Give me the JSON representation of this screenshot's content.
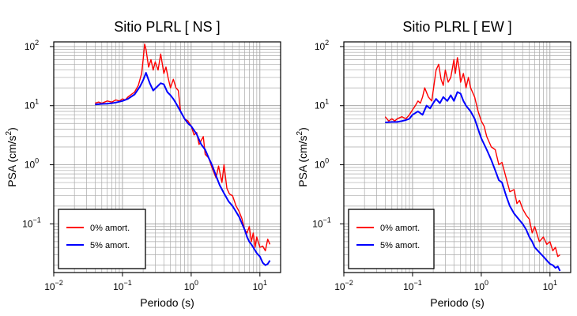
{
  "chart_data": [
    {
      "type": "line",
      "title": "Sitio PLRL [ NS ]",
      "xlabel": "Periodo (s)",
      "ylabel_prefix": "PSA (cm/s",
      "ylabel_sup": "2",
      "ylabel_suffix": ")",
      "x_scale": "log",
      "y_scale": "log",
      "xlim": [
        0.01,
        20
      ],
      "ylim": [
        0.015,
        120
      ],
      "grid": true,
      "legend_position": "bottom-left",
      "x_ticks": [
        {
          "base": "10",
          "exp": "−2",
          "value": 0.01
        },
        {
          "base": "10",
          "exp": "−1",
          "value": 0.1
        },
        {
          "base": "10",
          "exp": "0",
          "value": 1
        },
        {
          "base": "10",
          "exp": "1",
          "value": 10
        }
      ],
      "y_ticks": [
        {
          "base": "10",
          "exp": "−1",
          "value": 0.1
        },
        {
          "base": "10",
          "exp": "0",
          "value": 1
        },
        {
          "base": "10",
          "exp": "1",
          "value": 10
        },
        {
          "base": "10",
          "exp": "2",
          "value": 100
        }
      ],
      "series": [
        {
          "name": "0% amort.",
          "color": "#ff0000",
          "x": [
            0.04,
            0.045,
            0.05,
            0.06,
            0.07,
            0.08,
            0.09,
            0.1,
            0.11,
            0.12,
            0.13,
            0.15,
            0.17,
            0.19,
            0.2,
            0.21,
            0.22,
            0.24,
            0.26,
            0.28,
            0.3,
            0.33,
            0.36,
            0.4,
            0.43,
            0.46,
            0.5,
            0.55,
            0.6,
            0.65,
            0.7,
            0.8,
            0.9,
            1.0,
            1.1,
            1.2,
            1.3,
            1.5,
            1.6,
            1.8,
            2.0,
            2.3,
            2.5,
            2.8,
            3.0,
            3.3,
            3.6,
            4.0,
            4.5,
            5.0,
            5.5,
            6.0,
            6.5,
            7.0,
            7.5,
            8.0,
            8.5,
            9.0,
            10.0,
            11.0,
            12.0,
            13.0,
            14.0
          ],
          "values": [
            11,
            11.5,
            11,
            12,
            11.5,
            12.5,
            12,
            13,
            12.5,
            14,
            15,
            17,
            22,
            35,
            60,
            110,
            90,
            45,
            60,
            40,
            55,
            40,
            75,
            35,
            45,
            30,
            20,
            28,
            20,
            18,
            8,
            6,
            5.5,
            4.5,
            3.2,
            3.5,
            2.2,
            3.0,
            1.5,
            1.3,
            0.9,
            0.6,
            0.95,
            0.5,
            1.0,
            0.4,
            0.32,
            0.3,
            0.2,
            0.16,
            0.12,
            0.08,
            0.07,
            0.09,
            0.05,
            0.07,
            0.04,
            0.06,
            0.04,
            0.042,
            0.035,
            0.055,
            0.045
          ]
        },
        {
          "name": "5% amort.",
          "color": "#0000ff",
          "x": [
            0.04,
            0.05,
            0.06,
            0.07,
            0.08,
            0.1,
            0.12,
            0.15,
            0.18,
            0.2,
            0.22,
            0.25,
            0.28,
            0.32,
            0.36,
            0.4,
            0.45,
            0.5,
            0.55,
            0.6,
            0.7,
            0.8,
            0.9,
            1.0,
            1.2,
            1.4,
            1.6,
            1.8,
            2.0,
            2.3,
            2.6,
            3.0,
            3.5,
            4.0,
            4.5,
            5.0,
            5.5,
            6.0,
            6.5,
            7.0,
            7.5,
            8.0,
            9.0,
            10.0,
            11.0,
            12.0,
            13.0,
            14.0
          ],
          "values": [
            10.5,
            10.7,
            10.8,
            11,
            11.3,
            12,
            13,
            15.5,
            21,
            27,
            36,
            24,
            18,
            21,
            24,
            23,
            17,
            15,
            13,
            11,
            8,
            6,
            5,
            4.5,
            3.3,
            2.2,
            1.8,
            1.3,
            1.0,
            0.65,
            0.45,
            0.33,
            0.24,
            0.2,
            0.16,
            0.13,
            0.1,
            0.08,
            0.06,
            0.05,
            0.045,
            0.04,
            0.032,
            0.028,
            0.022,
            0.02,
            0.021,
            0.024
          ]
        }
      ]
    },
    {
      "type": "line",
      "title": "Sitio PLRL [ EW ]",
      "xlabel": "Periodo (s)",
      "ylabel_prefix": "PSA (cm/s",
      "ylabel_sup": "2",
      "ylabel_suffix": ")",
      "x_scale": "log",
      "y_scale": "log",
      "xlim": [
        0.01,
        20
      ],
      "ylim": [
        0.015,
        120
      ],
      "grid": true,
      "legend_position": "bottom-left",
      "x_ticks": [
        {
          "base": "10",
          "exp": "−2",
          "value": 0.01
        },
        {
          "base": "10",
          "exp": "−1",
          "value": 0.1
        },
        {
          "base": "10",
          "exp": "0",
          "value": 1
        },
        {
          "base": "10",
          "exp": "1",
          "value": 10
        }
      ],
      "y_ticks": [
        {
          "base": "10",
          "exp": "−1",
          "value": 0.1
        },
        {
          "base": "10",
          "exp": "0",
          "value": 1
        },
        {
          "base": "10",
          "exp": "1",
          "value": 10
        },
        {
          "base": "10",
          "exp": "2",
          "value": 100
        }
      ],
      "series": [
        {
          "name": "0% amort.",
          "color": "#ff0000",
          "x": [
            0.04,
            0.045,
            0.05,
            0.055,
            0.06,
            0.07,
            0.08,
            0.09,
            0.1,
            0.11,
            0.12,
            0.13,
            0.14,
            0.15,
            0.17,
            0.19,
            0.2,
            0.22,
            0.24,
            0.26,
            0.28,
            0.3,
            0.33,
            0.36,
            0.4,
            0.42,
            0.45,
            0.48,
            0.5,
            0.55,
            0.6,
            0.65,
            0.7,
            0.8,
            0.9,
            1.0,
            1.1,
            1.2,
            1.4,
            1.6,
            1.8,
            2.0,
            2.3,
            2.6,
            3.0,
            3.3,
            3.6,
            4.0,
            4.5,
            5.0,
            5.5,
            6.0,
            7.0,
            8.0,
            9.0,
            10.0,
            11.0,
            12.0,
            13.0,
            14.0
          ],
          "values": [
            6.5,
            5.5,
            6.0,
            5.5,
            6.0,
            6.5,
            6.0,
            7.0,
            8.5,
            10,
            12,
            11,
            14,
            20,
            14,
            12,
            18,
            40,
            50,
            28,
            22,
            40,
            25,
            30,
            60,
            35,
            65,
            40,
            25,
            35,
            20,
            30,
            20,
            14,
            8,
            5.5,
            4.5,
            3.0,
            2.0,
            1.8,
            1.0,
            1.1,
            0.6,
            0.35,
            0.38,
            0.22,
            0.25,
            0.18,
            0.14,
            0.12,
            0.07,
            0.09,
            0.05,
            0.06,
            0.045,
            0.05,
            0.035,
            0.04,
            0.028,
            0.03
          ]
        },
        {
          "name": "5% amort.",
          "color": "#0000ff",
          "x": [
            0.04,
            0.05,
            0.06,
            0.07,
            0.08,
            0.09,
            0.1,
            0.12,
            0.14,
            0.16,
            0.18,
            0.2,
            0.22,
            0.25,
            0.28,
            0.32,
            0.36,
            0.4,
            0.45,
            0.5,
            0.55,
            0.6,
            0.7,
            0.8,
            0.9,
            1.0,
            1.2,
            1.4,
            1.6,
            1.8,
            2.0,
            2.3,
            2.6,
            3.0,
            3.5,
            4.0,
            4.5,
            5.0,
            5.5,
            6.0,
            7.0,
            8.0,
            9.0,
            10.0,
            11.0,
            12.0,
            13.0,
            14.0
          ],
          "values": [
            5.2,
            5.3,
            5.3,
            5.5,
            5.7,
            6.0,
            7.0,
            8.0,
            7.0,
            10.0,
            9.0,
            11,
            13,
            11,
            14,
            12,
            15,
            12,
            17,
            16,
            12,
            10,
            8,
            6,
            4,
            2.8,
            1.8,
            1.2,
            0.8,
            0.55,
            0.5,
            0.3,
            0.2,
            0.15,
            0.12,
            0.1,
            0.08,
            0.06,
            0.05,
            0.04,
            0.033,
            0.028,
            0.024,
            0.021,
            0.02,
            0.018,
            0.019,
            0.016
          ]
        }
      ]
    }
  ]
}
